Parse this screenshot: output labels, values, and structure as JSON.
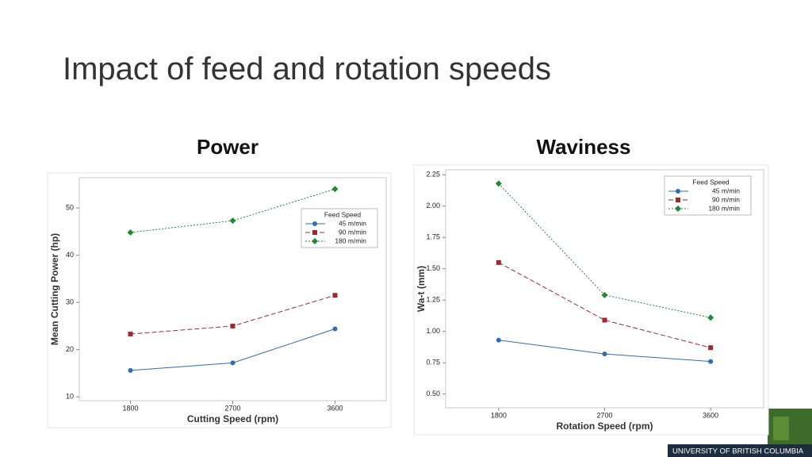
{
  "title": "Impact of feed and rotation speeds",
  "logo": {
    "caption": "UNIVERSITY OF BRITISH COLUMBIA"
  },
  "chart_data": [
    {
      "type": "line",
      "title": "Power",
      "x_label": "Cutting Speed (rpm)",
      "y_label": "Mean Cutting Power (hp)",
      "categories": [
        "1800",
        "2700",
        "3600"
      ],
      "ylim": [
        9.2,
        56.4
      ],
      "yticks": [
        10,
        20,
        30,
        40,
        50
      ],
      "legend_title": "Feed Speed",
      "legend": "upper right",
      "series": [
        {
          "name": "45 m/min",
          "color": "#2e6db4",
          "marker": "circle",
          "dash": "solid",
          "values": [
            15.6,
            17.2,
            24.4
          ]
        },
        {
          "name": "90 m/min",
          "color": "#a3282c",
          "marker": "square",
          "dash": "dashed",
          "values": [
            23.3,
            25.0,
            31.5
          ]
        },
        {
          "name": "180 m/min",
          "color": "#1f8a2e",
          "marker": "diamond",
          "dash": "dotted",
          "values": [
            44.8,
            47.3,
            54.0
          ]
        }
      ]
    },
    {
      "type": "line",
      "title": "Waviness",
      "x_label": "Rotation Speed (rpm)",
      "y_label": "Wa-t (mm)",
      "categories": [
        "1800",
        "2700",
        "3600"
      ],
      "ylim": [
        0.39,
        2.29
      ],
      "yticks": [
        {
          "value": 0.5,
          "label": "0.50"
        },
        {
          "value": 0.75,
          "label": "0.75"
        },
        {
          "value": 1,
          "label": "1.00"
        },
        {
          "value": 1.25,
          "label": "1.25"
        },
        {
          "value": 1.5,
          "label": "1.50"
        },
        {
          "value": 1.75,
          "label": "1.75"
        },
        {
          "value": 2,
          "label": "2.00"
        },
        {
          "value": 2.25,
          "label": "2.25"
        }
      ],
      "legend_title": "Feed Speed",
      "legend": "upper right",
      "series": [
        {
          "name": "45 m/min",
          "color": "#2e6db4",
          "marker": "circle",
          "dash": "solid",
          "values": [
            0.93,
            0.82,
            0.76
          ]
        },
        {
          "name": "90 m/min",
          "color": "#a3282c",
          "marker": "square",
          "dash": "dashed",
          "values": [
            1.55,
            1.09,
            0.87
          ]
        },
        {
          "name": "180 m/min",
          "color": "#1f8a2e",
          "marker": "diamond",
          "dash": "dotted",
          "values": [
            2.18,
            1.29,
            1.11
          ]
        }
      ]
    }
  ]
}
